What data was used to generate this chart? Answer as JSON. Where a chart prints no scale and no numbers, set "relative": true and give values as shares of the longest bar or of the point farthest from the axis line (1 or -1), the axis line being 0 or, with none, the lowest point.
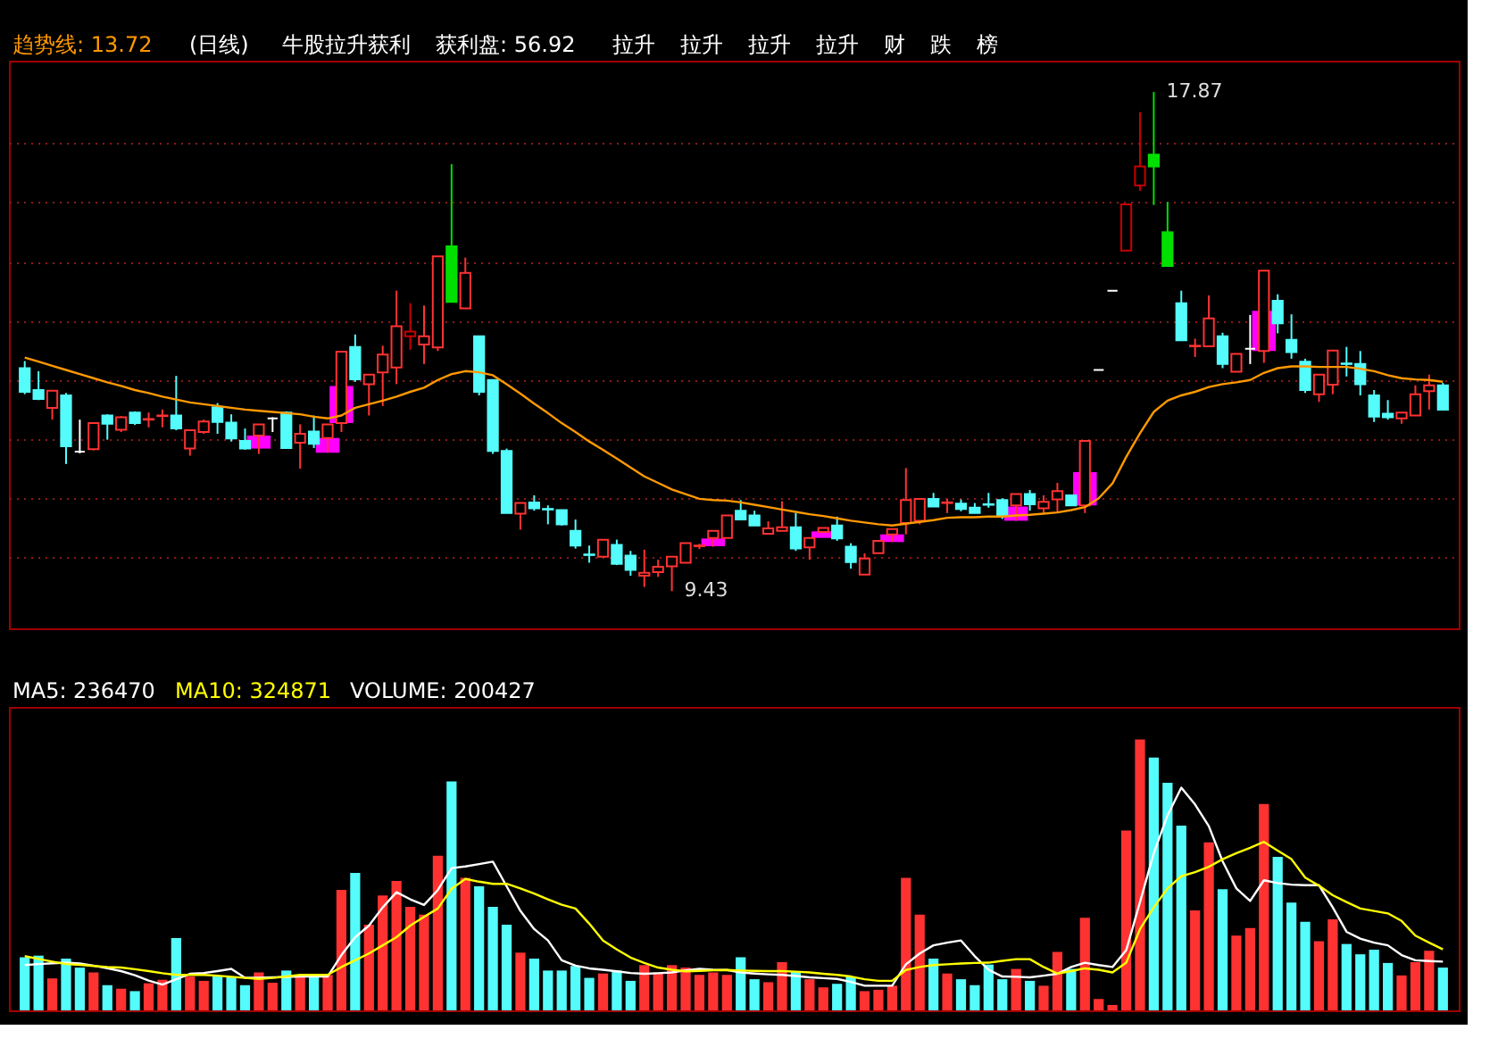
{
  "chart_data": [
    {
      "type": "candlestick",
      "annotations": [
        "(日线)",
        "牛股拉升获利",
        "获利盘: 56.92",
        "拉升",
        "拉升",
        "拉升",
        "拉升",
        "财",
        "跌",
        "榜"
      ],
      "categories": [
        null,
        null,
        null,
        null,
        null,
        null,
        null,
        null,
        null,
        null,
        null,
        null,
        null,
        null,
        null,
        null,
        null,
        null,
        null,
        null,
        null,
        null,
        null,
        null,
        null,
        null,
        null,
        null,
        null,
        null,
        null,
        null,
        null,
        null,
        null,
        null,
        null,
        null,
        null,
        null,
        null,
        null,
        null,
        null,
        null,
        null,
        null,
        null,
        null,
        null,
        null,
        null,
        null,
        null,
        null,
        null,
        null,
        null,
        null,
        null,
        null,
        null,
        null,
        null,
        null,
        null,
        null,
        null,
        null,
        null,
        null,
        null,
        null,
        null,
        null,
        null,
        null,
        null,
        null,
        null,
        null,
        null,
        null,
        null,
        null,
        null,
        null,
        null,
        null,
        null,
        null,
        null,
        null,
        null,
        null,
        null,
        null,
        null,
        null,
        null,
        null,
        null,
        null,
        null
      ],
      "ohlc": [
        [
          13.2,
          13.32,
          12.76,
          12.8
        ],
        [
          12.83,
          13.15,
          12.66,
          12.68
        ],
        [
          12.53,
          12.82,
          12.33,
          12.82
        ],
        [
          12.74,
          12.78,
          11.58,
          11.88
        ],
        [
          11.79,
          12.33,
          11.76,
          11.79
        ],
        [
          11.83,
          12.27,
          11.81,
          12.27
        ],
        [
          12.4,
          12.42,
          11.99,
          12.26
        ],
        [
          12.16,
          12.39,
          12.12,
          12.37
        ],
        [
          12.45,
          12.47,
          12.24,
          12.27
        ],
        [
          12.33,
          12.45,
          12.2,
          12.34
        ],
        [
          12.39,
          12.5,
          12.2,
          12.4
        ],
        [
          12.4,
          13.07,
          12.15,
          12.18
        ],
        [
          11.84,
          12.16,
          11.72,
          12.15
        ],
        [
          12.12,
          12.33,
          12.09,
          12.3
        ],
        [
          12.54,
          12.61,
          12.09,
          12.29
        ],
        [
          12.28,
          12.42,
          11.96,
          12.01
        ],
        [
          11.97,
          12.18,
          11.82,
          11.84
        ],
        [
          12.06,
          12.25,
          11.75,
          12.25
        ],
        [
          12.35,
          12.37,
          12.12,
          12.35
        ],
        [
          12.45,
          12.47,
          11.84,
          11.85
        ],
        [
          11.94,
          12.25,
          11.5,
          12.09
        ],
        [
          12.13,
          12.4,
          11.85,
          11.92
        ],
        [
          12.02,
          12.25,
          11.77,
          12.25
        ],
        [
          12.27,
          13.48,
          12.12,
          13.48
        ],
        [
          13.56,
          13.77,
          12.97,
          13.01
        ],
        [
          12.93,
          13.09,
          12.4,
          13.09
        ],
        [
          13.13,
          13.58,
          12.56,
          13.43
        ],
        [
          13.21,
          14.51,
          12.93,
          13.91
        ],
        [
          13.74,
          14.3,
          13.51,
          13.82
        ],
        [
          13.6,
          14.26,
          13.27,
          13.74
        ],
        [
          13.55,
          15.09,
          13.49,
          15.09
        ],
        [
          15.26,
          16.65,
          14.32,
          14.32
        ],
        [
          14.21,
          15.07,
          14.21,
          14.81
        ],
        [
          13.74,
          13.74,
          12.74,
          12.8
        ],
        [
          13.0,
          13.0,
          11.75,
          11.8
        ],
        [
          11.8,
          11.84,
          10.75,
          10.75
        ],
        [
          10.74,
          10.92,
          10.47,
          10.92
        ],
        [
          10.93,
          11.05,
          10.79,
          10.83
        ],
        [
          10.82,
          10.88,
          10.56,
          10.81
        ],
        [
          10.8,
          10.81,
          10.54,
          10.56
        ],
        [
          10.45,
          10.64,
          10.15,
          10.2
        ],
        [
          10.05,
          10.2,
          9.91,
          10.04
        ],
        [
          10.01,
          10.3,
          10.01,
          10.3
        ],
        [
          10.21,
          10.3,
          9.87,
          9.89
        ],
        [
          10.03,
          10.11,
          9.69,
          9.79
        ],
        [
          9.69,
          10.13,
          9.5,
          9.74
        ],
        [
          9.75,
          9.96,
          9.67,
          9.84
        ],
        [
          9.85,
          10.01,
          9.43,
          10.01
        ],
        [
          9.91,
          10.24,
          9.91,
          10.24
        ],
        [
          10.19,
          10.23,
          10.14,
          10.2
        ],
        [
          10.33,
          10.45,
          10.18,
          10.45
        ],
        [
          10.33,
          10.71,
          10.33,
          10.71
        ],
        [
          10.79,
          10.97,
          10.64,
          10.64
        ],
        [
          10.71,
          10.79,
          10.54,
          10.54
        ],
        [
          10.4,
          10.61,
          10.4,
          10.49
        ],
        [
          10.45,
          10.95,
          10.45,
          10.51
        ],
        [
          10.51,
          10.75,
          10.11,
          10.15
        ],
        [
          10.17,
          10.33,
          9.96,
          10.33
        ],
        [
          10.43,
          10.5,
          10.43,
          10.5
        ],
        [
          10.54,
          10.69,
          10.28,
          10.32
        ],
        [
          10.18,
          10.24,
          9.81,
          9.92
        ],
        [
          9.71,
          10.07,
          9.71,
          9.98
        ],
        [
          10.07,
          10.28,
          10.07,
          10.28
        ],
        [
          10.39,
          10.48,
          10.26,
          10.48
        ],
        [
          10.58,
          11.51,
          10.39,
          10.97
        ],
        [
          10.62,
          10.99,
          10.56,
          10.99
        ],
        [
          10.99,
          11.09,
          10.86,
          10.86
        ],
        [
          10.92,
          10.99,
          10.75,
          10.93
        ],
        [
          10.91,
          10.98,
          10.78,
          10.82
        ],
        [
          10.84,
          10.92,
          10.75,
          10.75
        ],
        [
          10.9,
          11.09,
          10.84,
          10.89
        ],
        [
          10.97,
          11.0,
          10.65,
          10.71
        ],
        [
          10.88,
          11.07,
          10.62,
          11.07
        ],
        [
          11.07,
          11.14,
          10.79,
          10.9
        ],
        [
          10.83,
          11.05,
          10.73,
          10.94
        ],
        [
          10.98,
          11.26,
          10.77,
          11.12
        ],
        [
          11.05,
          11.05,
          10.88,
          10.88
        ],
        [
          10.88,
          11.97,
          10.75,
          11.97
        ],
        [
          13.17,
          13.17,
          13.17,
          13.17
        ],
        [
          14.51,
          14.51,
          14.51,
          14.51
        ],
        [
          15.19,
          15.97,
          15.19,
          15.97
        ],
        [
          16.29,
          17.53,
          16.2,
          16.61
        ],
        [
          16.81,
          17.87,
          15.96,
          16.61
        ],
        [
          15.5,
          16.01,
          14.93,
          14.93
        ],
        [
          14.3,
          14.51,
          13.67,
          13.67
        ],
        [
          13.57,
          13.7,
          13.39,
          13.58
        ],
        [
          13.57,
          14.43,
          13.57,
          14.04
        ],
        [
          13.74,
          13.8,
          13.2,
          13.27
        ],
        [
          13.14,
          13.44,
          13.14,
          13.44
        ],
        [
          13.53,
          14.1,
          13.27,
          13.53
        ],
        [
          13.49,
          14.85,
          13.29,
          14.85
        ],
        [
          14.34,
          14.45,
          13.79,
          13.96
        ],
        [
          13.68,
          14.11,
          13.36,
          13.47
        ],
        [
          13.31,
          13.36,
          12.78,
          12.83
        ],
        [
          12.76,
          13.09,
          12.63,
          13.09
        ],
        [
          12.92,
          13.5,
          12.76,
          13.5
        ],
        [
          13.28,
          13.56,
          13.06,
          13.27
        ],
        [
          13.27,
          13.49,
          12.74,
          12.93
        ],
        [
          12.74,
          12.83,
          12.29,
          12.38
        ],
        [
          12.43,
          12.66,
          12.33,
          12.37
        ],
        [
          12.35,
          12.45,
          12.26,
          12.45
        ],
        [
          12.4,
          12.91,
          12.4,
          12.76
        ],
        [
          12.81,
          13.09,
          12.5,
          12.91
        ],
        [
          12.91,
          12.95,
          12.5,
          12.5
        ]
      ],
      "colors": [
        "#54fcfc",
        "#54fcfc",
        "#ff3232",
        "#54fcfc",
        "#ffffff",
        "#ff3232",
        "#54fcfc",
        "#ff3232",
        "#54fcfc",
        "#ff3232",
        "#ff3232",
        "#54fcfc",
        "#ff3232",
        "#ff3232",
        "#54fcfc",
        "#54fcfc",
        "#54fcfc",
        "#ff3232",
        "#ffffff",
        "#54fcfc",
        "#ff3232",
        "#54fcfc",
        "#ff3232",
        "#ff3232",
        "#54fcfc",
        "#ff3232",
        "#ff3232",
        "#ff3232",
        "#c80000",
        "#ff3232",
        "#ff3232",
        "#00e000",
        "#ff3232",
        "#54fcfc",
        "#54fcfc",
        "#54fcfc",
        "#ff3232",
        "#54fcfc",
        "#54fcfc",
        "#54fcfc",
        "#54fcfc",
        "#54fcfc",
        "#ff3232",
        "#54fcfc",
        "#54fcfc",
        "#ff3232",
        "#ff3232",
        "#ff3232",
        "#ff3232",
        "#ff3232",
        "#ff3232",
        "#ff3232",
        "#54fcfc",
        "#54fcfc",
        "#ff3232",
        "#ff3232",
        "#54fcfc",
        "#ff3232",
        "#ff3232",
        "#54fcfc",
        "#54fcfc",
        "#ff3232",
        "#ff3232",
        "#ff3232",
        "#ff3232",
        "#ff3232",
        "#54fcfc",
        "#ff3232",
        "#54fcfc",
        "#54fcfc",
        "#54fcfc",
        "#54fcfc",
        "#ff3232",
        "#54fcfc",
        "#ff3232",
        "#ff3232",
        "#54fcfc",
        "#ff3232",
        "#ffffff",
        "#ffffff",
        "#c80000",
        "#c80000",
        "#00e000",
        "#00e000",
        "#54fcfc",
        "#ff3232",
        "#ff3232",
        "#54fcfc",
        "#ff3232",
        "#ffffff",
        "#ff3232",
        "#54fcfc",
        "#54fcfc",
        "#54fcfc",
        "#ff3232",
        "#ff3232",
        "#54fcfc",
        "#54fcfc",
        "#54fcfc",
        "#54fcfc",
        "#ff3232",
        "#ff3232",
        "#ff3232",
        "#54fcfc"
      ],
      "series": [
        {
          "type": "line",
          "name": "趋势线: 13.72",
          "color": "#ff9900",
          "values": [
            13.38,
            13.31,
            13.24,
            13.17,
            13.1,
            13.03,
            12.96,
            12.9,
            12.83,
            12.78,
            12.72,
            12.67,
            12.62,
            12.59,
            12.56,
            12.53,
            12.5,
            12.48,
            12.46,
            12.44,
            12.42,
            12.38,
            12.35,
            12.4,
            12.53,
            12.59,
            12.65,
            12.72,
            12.8,
            12.87,
            13.0,
            13.1,
            13.15,
            13.13,
            13.08,
            12.93,
            12.77,
            12.6,
            12.44,
            12.27,
            12.12,
            11.96,
            11.82,
            11.67,
            11.52,
            11.37,
            11.26,
            11.15,
            11.07,
            10.99,
            10.97,
            10.96,
            10.93,
            10.89,
            10.85,
            10.81,
            10.77,
            10.73,
            10.7,
            10.66,
            10.62,
            10.59,
            10.56,
            10.54,
            10.57,
            10.6,
            10.63,
            10.67,
            10.68,
            10.68,
            10.69,
            10.69,
            10.71,
            10.72,
            10.74,
            10.76,
            10.8,
            10.85,
            11.0,
            11.25,
            11.7,
            12.1,
            12.46,
            12.65,
            12.74,
            12.8,
            12.88,
            12.93,
            12.96,
            13.0,
            13.12,
            13.2,
            13.23,
            13.23,
            13.22,
            13.22,
            13.22,
            13.19,
            13.15,
            13.08,
            13.03,
            13.01,
            13.0,
            12.97
          ]
        },
        {
          "type": "bar",
          "color": "#ff00ff",
          "values": [
            null,
            null,
            null,
            null,
            null,
            null,
            null,
            null,
            null,
            null,
            null,
            null,
            null,
            null,
            null,
            null,
            null,
            0.22,
            null,
            null,
            null,
            null,
            0.25,
            0.63,
            null,
            null,
            null,
            null,
            null,
            null,
            null,
            null,
            null,
            null,
            null,
            null,
            null,
            null,
            null,
            null,
            null,
            null,
            null,
            null,
            null,
            null,
            null,
            null,
            null,
            null,
            0.13,
            null,
            null,
            null,
            null,
            null,
            null,
            null,
            0.11,
            null,
            null,
            null,
            null,
            0.13,
            null,
            null,
            null,
            null,
            null,
            null,
            null,
            null,
            0.24,
            null,
            null,
            null,
            null,
            0.56,
            null,
            null,
            null,
            null,
            null,
            null,
            null,
            null,
            null,
            null,
            null,
            null,
            0.68,
            null,
            null,
            null,
            null,
            null,
            null,
            null,
            null,
            null,
            null,
            null,
            null,
            null
          ],
          "base": [
            null,
            null,
            null,
            null,
            null,
            null,
            null,
            null,
            null,
            null,
            null,
            null,
            null,
            null,
            null,
            null,
            null,
            11.84,
            null,
            null,
            null,
            null,
            11.77,
            12.27,
            null,
            null,
            null,
            null,
            null,
            null,
            null,
            null,
            null,
            null,
            null,
            null,
            null,
            null,
            null,
            null,
            null,
            null,
            null,
            null,
            null,
            null,
            null,
            null,
            null,
            null,
            10.19,
            null,
            null,
            null,
            null,
            null,
            null,
            null,
            10.33,
            null,
            null,
            null,
            null,
            10.26,
            null,
            null,
            null,
            null,
            null,
            null,
            null,
            null,
            10.62,
            null,
            null,
            null,
            null,
            10.88,
            null,
            null,
            null,
            null,
            null,
            null,
            null,
            null,
            null,
            null,
            null,
            null,
            13.49,
            null,
            null,
            null,
            null,
            null,
            null,
            null,
            null,
            null,
            null,
            null,
            null,
            null
          ]
        }
      ],
      "value_labels": [
        null,
        null,
        null,
        null,
        null,
        null,
        null,
        null,
        null,
        null,
        null,
        null,
        null,
        null,
        null,
        null,
        null,
        null,
        null,
        null,
        null,
        null,
        null,
        null,
        null,
        null,
        null,
        null,
        null,
        null,
        null,
        null,
        null,
        null,
        null,
        null,
        null,
        null,
        null,
        null,
        null,
        null,
        null,
        null,
        null,
        null,
        null,
        "9.43",
        null,
        null,
        null,
        null,
        null,
        null,
        null,
        null,
        null,
        null,
        null,
        null,
        null,
        null,
        null,
        null,
        null,
        null,
        null,
        null,
        null,
        null,
        null,
        null,
        null,
        null,
        null,
        null,
        null,
        null,
        null,
        null,
        null,
        null,
        "17.87",
        null,
        null,
        null,
        null,
        null,
        null,
        null,
        null,
        null,
        null,
        null,
        null,
        null,
        null,
        null,
        null,
        null,
        null,
        null,
        null,
        null
      ],
      "ylim": [
        8.8,
        18.4
      ],
      "yticks": [
        {
          "value": 10,
          "label": null
        },
        {
          "value": 11,
          "label": null
        },
        {
          "value": 12,
          "label": null
        },
        {
          "value": 13,
          "label": null
        },
        {
          "value": 14,
          "label": null
        },
        {
          "value": 15,
          "label": null
        },
        {
          "value": 16,
          "label": null
        },
        {
          "value": 17,
          "label": null
        }
      ],
      "grid": "y",
      "legend": "top left",
      "tick_labels": false
    },
    {
      "type": "bar",
      "relative": true,
      "legend": "top left",
      "tick_labels": false,
      "annotations": [
        "VOLUME: 200427"
      ],
      "categories": [
        null,
        null,
        null,
        null,
        null,
        null,
        null,
        null,
        null,
        null,
        null,
        null,
        null,
        null,
        null,
        null,
        null,
        null,
        null,
        null,
        null,
        null,
        null,
        null,
        null,
        null,
        null,
        null,
        null,
        null,
        null,
        null,
        null,
        null,
        null,
        null,
        null,
        null,
        null,
        null,
        null,
        null,
        null,
        null,
        null,
        null,
        null,
        null,
        null,
        null,
        null,
        null,
        null,
        null,
        null,
        null,
        null,
        null,
        null,
        null,
        null,
        null,
        null,
        null,
        null,
        null,
        null,
        null,
        null,
        null,
        null,
        null,
        null,
        null,
        null,
        null,
        null,
        null,
        null,
        null,
        null,
        null,
        null,
        null,
        null,
        null,
        null,
        null,
        null,
        null,
        null,
        null,
        null,
        null,
        null,
        null,
        null,
        null,
        null,
        null,
        null,
        null,
        null,
        null
      ],
      "series": [
        {
          "values": [
            0.196,
            0.202,
            0.118,
            0.191,
            0.158,
            0.14,
            0.093,
            0.08,
            0.071,
            0.1,
            0.113,
            0.267,
            0.125,
            0.109,
            0.125,
            0.125,
            0.093,
            0.14,
            0.102,
            0.147,
            0.131,
            0.129,
            0.131,
            0.445,
            0.507,
            0.316,
            0.424,
            0.478,
            0.382,
            0.353,
            0.571,
            0.845,
            0.489,
            0.458,
            0.382,
            0.316,
            0.213,
            0.191,
            0.147,
            0.147,
            0.164,
            0.12,
            0.136,
            0.147,
            0.109,
            0.167,
            0.14,
            0.167,
            0.158,
            0.131,
            0.14,
            0.131,
            0.196,
            0.115,
            0.104,
            0.178,
            0.144,
            0.115,
            0.085,
            0.098,
            0.125,
            0.071,
            0.076,
            0.091,
            0.489,
            0.353,
            0.191,
            0.136,
            0.115,
            0.093,
            0.169,
            0.115,
            0.153,
            0.109,
            0.091,
            0.216,
            0.153,
            0.342,
            0.042,
            0.02,
            0.664,
            1,
            0.933,
            0.84,
            0.682,
            0.369,
            0.62,
            0.447,
            0.276,
            0.304,
            0.762,
            0.567,
            0.398,
            0.327,
            0.255,
            0.336,
            0.245,
            0.207,
            0.224,
            0.175,
            0.129,
            0.178,
            0.22,
            0.158
          ],
          "colors": [
            "#54fcfc",
            "#54fcfc",
            "#ff3232",
            "#54fcfc",
            "#54fcfc",
            "#ff3232",
            "#54fcfc",
            "#ff3232",
            "#54fcfc",
            "#ff3232",
            "#ff3232",
            "#54fcfc",
            "#ff3232",
            "#ff3232",
            "#54fcfc",
            "#54fcfc",
            "#54fcfc",
            "#ff3232",
            "#ff3232",
            "#54fcfc",
            "#ff3232",
            "#54fcfc",
            "#ff3232",
            "#ff3232",
            "#54fcfc",
            "#ff3232",
            "#ff3232",
            "#ff3232",
            "#ff3232",
            "#ff3232",
            "#ff3232",
            "#54fcfc",
            "#ff3232",
            "#54fcfc",
            "#54fcfc",
            "#54fcfc",
            "#ff3232",
            "#54fcfc",
            "#54fcfc",
            "#54fcfc",
            "#54fcfc",
            "#54fcfc",
            "#ff3232",
            "#54fcfc",
            "#54fcfc",
            "#ff3232",
            "#ff3232",
            "#ff3232",
            "#ff3232",
            "#ff3232",
            "#ff3232",
            "#ff3232",
            "#54fcfc",
            "#54fcfc",
            "#ff3232",
            "#ff3232",
            "#54fcfc",
            "#ff3232",
            "#ff3232",
            "#54fcfc",
            "#54fcfc",
            "#ff3232",
            "#ff3232",
            "#ff3232",
            "#ff3232",
            "#ff3232",
            "#54fcfc",
            "#ff3232",
            "#54fcfc",
            "#54fcfc",
            "#54fcfc",
            "#54fcfc",
            "#ff3232",
            "#54fcfc",
            "#ff3232",
            "#ff3232",
            "#54fcfc",
            "#ff3232",
            "#ff3232",
            "#ff3232",
            "#ff3232",
            "#ff3232",
            "#54fcfc",
            "#54fcfc",
            "#54fcfc",
            "#ff3232",
            "#ff3232",
            "#54fcfc",
            "#ff3232",
            "#ff3232",
            "#ff3232",
            "#54fcfc",
            "#54fcfc",
            "#54fcfc",
            "#ff3232",
            "#ff3232",
            "#54fcfc",
            "#54fcfc",
            "#54fcfc",
            "#54fcfc",
            "#ff3232",
            "#ff3232",
            "#ff3232",
            "#54fcfc"
          ]
        },
        {
          "type": "line",
          "name": "MA5: 236470",
          "color": "#ffffff",
          "values": [
            0.167,
            0.171,
            0.174,
            0.176,
            0.173,
            0.165,
            0.155,
            0.145,
            0.13,
            0.11,
            0.095,
            0.115,
            0.135,
            0.138,
            0.145,
            0.153,
            0.12,
            0.12,
            0.122,
            0.123,
            0.125,
            0.125,
            0.125,
            0.204,
            0.27,
            0.313,
            0.38,
            0.436,
            0.41,
            0.389,
            0.444,
            0.525,
            0.531,
            0.54,
            0.549,
            0.458,
            0.367,
            0.3,
            0.258,
            0.185,
            0.165,
            0.155,
            0.15,
            0.144,
            0.138,
            0.135,
            0.137,
            0.14,
            0.148,
            0.153,
            0.15,
            0.149,
            0.14,
            0.136,
            0.133,
            0.131,
            0.127,
            0.122,
            0.119,
            0.116,
            0.105,
            0.091,
            0.091,
            0.091,
            0.17,
            0.21,
            0.24,
            0.25,
            0.258,
            0.2,
            0.15,
            0.125,
            0.124,
            0.122,
            0.128,
            0.135,
            0.16,
            0.176,
            0.167,
            0.16,
            0.222,
            0.4,
            0.58,
            0.72,
            0.822,
            0.76,
            0.68,
            0.55,
            0.45,
            0.404,
            0.48,
            0.47,
            0.464,
            0.462,
            0.462,
            0.38,
            0.29,
            0.265,
            0.25,
            0.24,
            0.204,
            0.185,
            0.182,
            0.18
          ]
        },
        {
          "type": "line",
          "name": "MA10: 324871",
          "color": "#ffff00",
          "values": [
            0.2,
            0.19,
            0.18,
            0.171,
            0.168,
            0.164,
            0.16,
            0.158,
            0.152,
            0.145,
            0.137,
            0.131,
            0.131,
            0.131,
            0.128,
            0.124,
            0.12,
            0.116,
            0.12,
            0.125,
            0.131,
            0.131,
            0.131,
            0.16,
            0.185,
            0.21,
            0.24,
            0.27,
            0.313,
            0.345,
            0.376,
            0.449,
            0.485,
            0.475,
            0.467,
            0.467,
            0.45,
            0.431,
            0.41,
            0.39,
            0.376,
            0.32,
            0.258,
            0.225,
            0.195,
            0.175,
            0.158,
            0.15,
            0.144,
            0.146,
            0.148,
            0.149,
            0.147,
            0.146,
            0.145,
            0.145,
            0.143,
            0.14,
            0.135,
            0.131,
            0.125,
            0.115,
            0.109,
            0.109,
            0.149,
            0.16,
            0.167,
            0.17,
            0.173,
            0.175,
            0.176,
            0.183,
            0.189,
            0.189,
            0.16,
            0.136,
            0.145,
            0.155,
            0.15,
            0.14,
            0.176,
            0.3,
            0.38,
            0.45,
            0.495,
            0.51,
            0.53,
            0.558,
            0.58,
            0.6,
            0.622,
            0.59,
            0.558,
            0.49,
            0.46,
            0.425,
            0.4,
            0.376,
            0.367,
            0.358,
            0.33,
            0.276,
            0.25,
            0.225
          ]
        }
      ]
    }
  ]
}
